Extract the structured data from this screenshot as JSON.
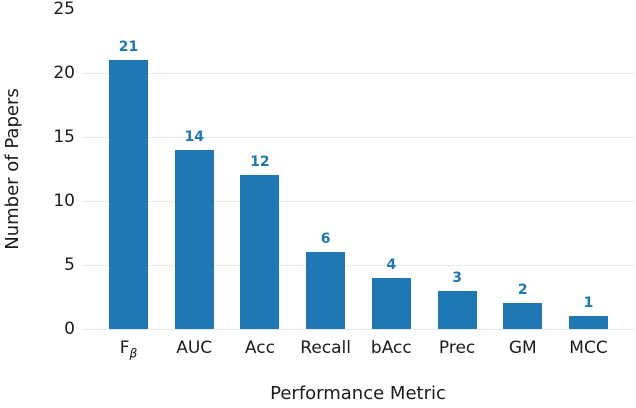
{
  "chart_data": {
    "type": "bar",
    "title": "",
    "xlabel": "Performance Metric",
    "ylabel": "Number of Papers",
    "categories": [
      "F_β",
      "AUC",
      "Acc",
      "Recall",
      "bAcc",
      "Prec",
      "GM",
      "MCC"
    ],
    "values": [
      21,
      14,
      12,
      6,
      4,
      3,
      2,
      1
    ],
    "bar_value_labels": [
      "21",
      "14",
      "12",
      "6",
      "4",
      "3",
      "2",
      "1"
    ],
    "ylim": [
      0,
      25
    ],
    "yticks": [
      0,
      5,
      10,
      15,
      20,
      25
    ],
    "grid": "horizontal gridlines at 0,5,10,15,20; no top gridline; no axis spines; no tick marks",
    "legend": "none",
    "colors": {
      "bar": "#1f77b4",
      "value_label": "#1f77b4",
      "gridline": "#e8e8e8",
      "text": "#1a1a1a",
      "background": "#ffffff"
    }
  }
}
